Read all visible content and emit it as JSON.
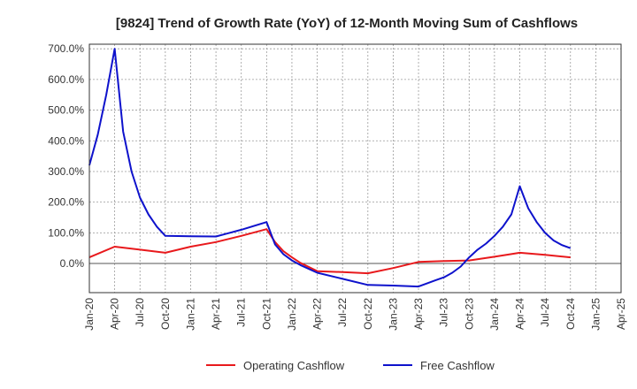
{
  "chart_data": {
    "type": "line",
    "title": "[9824]  Trend of Growth Rate (YoY) of 12-Month Moving Sum of Cashflows",
    "xlabel": "",
    "ylabel": "",
    "ylim": [
      -95,
      715
    ],
    "xlim": [
      "2020-01",
      "2025-04"
    ],
    "y_ticks": [
      0,
      100,
      200,
      300,
      400,
      500,
      600,
      700
    ],
    "y_tick_labels": [
      "0.0%",
      "100.0%",
      "200.0%",
      "300.0%",
      "400.0%",
      "500.0%",
      "600.0%",
      "700.0%"
    ],
    "x_tick_labels": [
      "Jan-20",
      "Apr-20",
      "Jul-20",
      "Oct-20",
      "Jan-21",
      "Apr-21",
      "Jul-21",
      "Oct-21",
      "Jan-22",
      "Apr-22",
      "Jul-22",
      "Oct-22",
      "Jan-23",
      "Apr-23",
      "Jul-23",
      "Oct-23",
      "Jan-24",
      "Apr-24",
      "Jul-24",
      "Oct-24",
      "Jan-25",
      "Apr-25"
    ],
    "grid": true,
    "legend_position": "bottom",
    "series": [
      {
        "name": "Operating Cashflow",
        "color": "#e8191c",
        "points": [
          [
            "2020-01",
            20
          ],
          [
            "2020-04",
            55
          ],
          [
            "2020-07",
            45
          ],
          [
            "2020-10",
            35
          ],
          [
            "2021-01",
            55
          ],
          [
            "2021-04",
            70
          ],
          [
            "2021-07",
            90
          ],
          [
            "2021-10",
            112
          ],
          [
            "2021-11",
            70
          ],
          [
            "2021-12",
            40
          ],
          [
            "2022-01",
            20
          ],
          [
            "2022-02",
            2
          ],
          [
            "2022-04",
            -25
          ],
          [
            "2022-07",
            -28
          ],
          [
            "2022-10",
            -32
          ],
          [
            "2023-01",
            -15
          ],
          [
            "2023-04",
            5
          ],
          [
            "2023-07",
            8
          ],
          [
            "2023-10",
            10
          ],
          [
            "2024-01",
            22
          ],
          [
            "2024-04",
            35
          ],
          [
            "2024-07",
            28
          ],
          [
            "2024-10",
            20
          ]
        ]
      },
      {
        "name": "Free Cashflow",
        "color": "#0e12cc",
        "points": [
          [
            "2020-01",
            320
          ],
          [
            "2020-02",
            420
          ],
          [
            "2020-03",
            550
          ],
          [
            "2020-04",
            700
          ],
          [
            "2020-05",
            430
          ],
          [
            "2020-06",
            300
          ],
          [
            "2020-07",
            215
          ],
          [
            "2020-08",
            160
          ],
          [
            "2020-09",
            120
          ],
          [
            "2020-10",
            90
          ],
          [
            "2021-01",
            89
          ],
          [
            "2021-04",
            88
          ],
          [
            "2021-07",
            110
          ],
          [
            "2021-10",
            135
          ],
          [
            "2021-11",
            62
          ],
          [
            "2021-12",
            30
          ],
          [
            "2022-01",
            10
          ],
          [
            "2022-02",
            -5
          ],
          [
            "2022-04",
            -30
          ],
          [
            "2022-07",
            -50
          ],
          [
            "2022-10",
            -70
          ],
          [
            "2023-01",
            -72
          ],
          [
            "2023-04",
            -75
          ],
          [
            "2023-05",
            -65
          ],
          [
            "2023-06",
            -55
          ],
          [
            "2023-07",
            -45
          ],
          [
            "2023-08",
            -30
          ],
          [
            "2023-09",
            -10
          ],
          [
            "2023-10",
            20
          ],
          [
            "2023-11",
            45
          ],
          [
            "2023-12",
            65
          ],
          [
            "2024-01",
            90
          ],
          [
            "2024-02",
            120
          ],
          [
            "2024-03",
            160
          ],
          [
            "2024-04",
            252
          ],
          [
            "2024-05",
            180
          ],
          [
            "2024-06",
            135
          ],
          [
            "2024-07",
            100
          ],
          [
            "2024-08",
            75
          ],
          [
            "2024-09",
            60
          ],
          [
            "2024-10",
            50
          ]
        ]
      }
    ]
  }
}
